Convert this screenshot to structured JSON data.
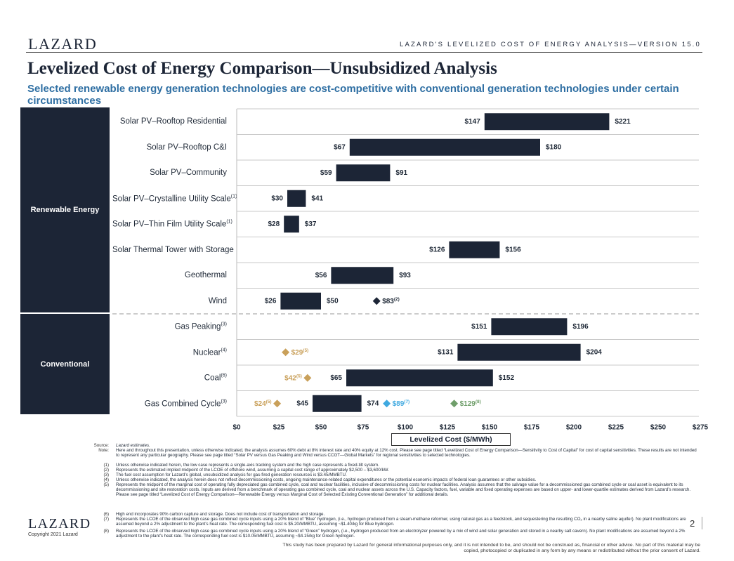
{
  "header": {
    "logo": "LAZARD",
    "analysis_title": "LAZARD'S LEVELIZED COST OF ENERGY ANALYSIS—VERSION 15.0",
    "title": "Levelized Cost of Energy Comparison—Unsubsidized Analysis",
    "subtitle": "Selected renewable energy generation technologies are cost-competitive with conventional generation technologies under certain circumstances"
  },
  "categories": {
    "renewable": "Renewable Energy",
    "conventional": "Conventional"
  },
  "chart_data": {
    "type": "bar",
    "subtype": "floating-range",
    "xlabel": "Levelized Cost ($/MWh)",
    "xlim": [
      0,
      275
    ],
    "xticks": [
      0,
      25,
      50,
      75,
      100,
      125,
      150,
      175,
      200,
      225,
      250,
      275
    ],
    "xtick_labels": [
      "$0",
      "$25",
      "$50",
      "$75",
      "$100",
      "$125",
      "$150",
      "$175",
      "$200",
      "$225",
      "$250",
      "$275"
    ],
    "rows": [
      {
        "name": "Solar PV–Rooftop Residential",
        "note": "",
        "category": "renewable",
        "low": 147,
        "high": 221,
        "low_label": "$147",
        "high_label": "$221",
        "markers": []
      },
      {
        "name": "Solar PV–Rooftop C&I",
        "note": "",
        "category": "renewable",
        "low": 67,
        "high": 180,
        "low_label": "$67",
        "high_label": "$180",
        "markers": []
      },
      {
        "name": "Solar PV–Community",
        "note": "",
        "category": "renewable",
        "low": 59,
        "high": 91,
        "low_label": "$59",
        "high_label": "$91",
        "markers": []
      },
      {
        "name": "Solar PV–Crystalline Utility Scale",
        "note": "(1)",
        "category": "renewable",
        "low": 30,
        "high": 41,
        "low_label": "$30",
        "high_label": "$41",
        "markers": []
      },
      {
        "name": "Solar PV–Thin Film Utility Scale",
        "note": "(1)",
        "category": "renewable",
        "low": 28,
        "high": 37,
        "low_label": "$28",
        "high_label": "$37",
        "markers": []
      },
      {
        "name": "Solar Thermal Tower with Storage",
        "note": "",
        "category": "renewable",
        "low": 126,
        "high": 156,
        "low_label": "$126",
        "high_label": "$156",
        "markers": []
      },
      {
        "name": "Geothermal",
        "note": "",
        "category": "renewable",
        "low": 56,
        "high": 93,
        "low_label": "$56",
        "high_label": "$93",
        "markers": []
      },
      {
        "name": "Wind",
        "note": "",
        "category": "renewable",
        "low": 26,
        "high": 50,
        "low_label": "$26",
        "high_label": "$50",
        "markers": [
          {
            "value": 83,
            "label": "$83",
            "note": "(2)",
            "color": "#1c2536",
            "side": "right"
          }
        ]
      },
      {
        "name": "Gas Peaking",
        "note": "(3)",
        "category": "conventional",
        "low": 151,
        "high": 196,
        "low_label": "$151",
        "high_label": "$196",
        "markers": []
      },
      {
        "name": "Nuclear",
        "note": "(4)",
        "category": "conventional",
        "low": 131,
        "high": 204,
        "low_label": "$131",
        "high_label": "$204",
        "markers": [
          {
            "value": 29,
            "label": "$29",
            "note": "(5)",
            "color": "#c9a05a",
            "side": "right"
          }
        ]
      },
      {
        "name": "Coal",
        "note": "(6)",
        "category": "conventional",
        "low": 65,
        "high": 152,
        "low_label": "$65",
        "high_label": "$152",
        "markers": [
          {
            "value": 42,
            "label": "$42",
            "note": "(5)",
            "color": "#c9a05a",
            "side": "left"
          }
        ]
      },
      {
        "name": "Gas Combined Cycle",
        "note": "(3)",
        "category": "conventional",
        "low": 45,
        "high": 74,
        "low_label": "$45",
        "high_label": "$74",
        "markers": [
          {
            "value": 24,
            "label": "$24",
            "note": "(5)",
            "color": "#c9a05a",
            "side": "left"
          },
          {
            "value": 89,
            "label": "$89",
            "note": "(7)",
            "color": "#3fa9e0",
            "side": "right"
          },
          {
            "value": 129,
            "label": "$129",
            "note": "(8)",
            "color": "#6f9e6a",
            "side": "right"
          }
        ]
      }
    ]
  },
  "notes": {
    "source_key": "Source:",
    "source_text": "Lazard estimates.",
    "note_key": "Note:",
    "note_text": "Here and throughout this presentation, unless otherwise indicated, the analysis assumes 60% debt at 8% interest rate and 40% equity at 12% cost. Please see page titled “Levelized Cost of Energy Comparison—Sensitivity to Cost of Capital” for cost of capital sensitivities. These results are not intended to represent any particular geography. Please see page titled “Solar PV versus Gas Peaking and Wind versus CCGT—Global Markets” for regional sensitivities to selected technologies.",
    "items": [
      {
        "key": "(1)",
        "text": "Unless otherwise indicated herein, the low case represents a single-axis tracking system and the high case represents a fixed-tilt system."
      },
      {
        "key": "(2)",
        "text": "Represents the estimated implied midpoint of the LCOE of offshore wind, assuming a capital cost range of approximately $2,500 – $3,600/kW."
      },
      {
        "key": "(3)",
        "text": "The fuel cost assumption for Lazard’s global, unsubsidized analysis for gas-fired generation resources is $3.45/MMBTU."
      },
      {
        "key": "(4)",
        "text": "Unless otherwise indicated, the analysis herein does not reflect decommissioning costs, ongoing maintenance-related capital expenditures or the potential economic impacts of federal loan guarantees or other subsidies."
      },
      {
        "key": "(5)",
        "text": "Represents the midpoint of the marginal cost of operating fully depreciated gas combined cycle, coal and nuclear facilities, inclusive of decommissioning costs for nuclear facilities. Analysis assumes that the salvage value for a decommissioned gas combined cycle or coal asset is equivalent to its decommissioning and site restoration costs. Inputs are derived from a benchmark of operating gas combined cycle, coal and nuclear assets across the U.S. Capacity factors, fuel, variable and fixed operating expenses are based on upper- and lower-quartile estimates derived from Lazard’s research. Please see page titled “Levelized Cost of Energy Comparison—Renewable Energy versus Marginal Cost of Selected Existing Conventional Generation” for additional details."
      },
      {
        "key": "(6)",
        "text": "High end incorporates 90% carbon capture and storage. Does not include cost of transportation and storage."
      },
      {
        "key": "(7)",
        "text": "Represents the LCOE of the observed high case gas combined cycle inputs using a 20% blend of “Blue” hydrogen, (i.e., hydrogen produced from a steam-methane reformer, using natural gas as a feedstock, and sequestering the resulting CO₂ in a nearby saline aquifer). No plant modifications are assumed beyond a 2% adjustment to the plant’s heat rate. The corresponding fuel cost is $5.20/MMBTU, assuming ~$1.40/kg for Blue hydrogen."
      },
      {
        "key": "(8)",
        "text": "Represents the LCOE of the observed high case gas combined cycle inputs using a 20% blend of “Green” hydrogen, (i.e., hydrogen produced from an electrolyzer powered by a mix of wind and solar generation and stored in a nearby salt cavern). No plant modifications are assumed beyond a 2% adjustment to the plant’s heat rate. The corresponding fuel cost is $10.05/MMBTU, assuming ~$4.15/kg for Green hydrogen."
      }
    ]
  },
  "footer": {
    "logo": "LAZARD",
    "copyright": "Copyright 2021 Lazard",
    "page_number": "2",
    "disclaimer": "This study has been prepared by Lazard for general informational purposes only, and it is not intended to be, and should not be construed as, financial or other advice. No part of this material may be copied, photocopied or duplicated in any form by any means or redistributed without the prior consent of Lazard."
  }
}
